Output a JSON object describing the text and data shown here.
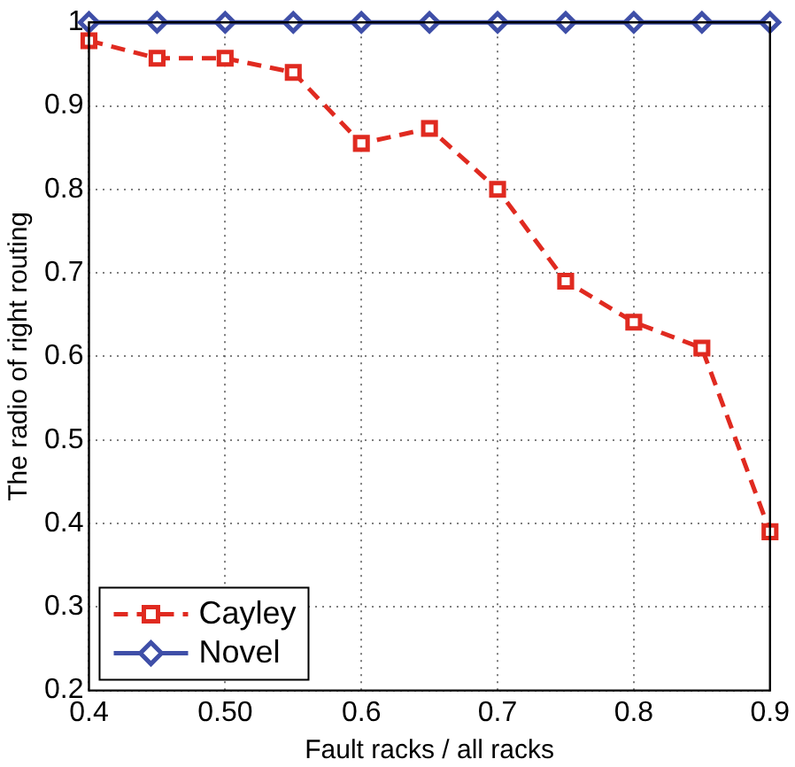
{
  "chart_data": {
    "type": "line",
    "xlabel": "Fault racks / all racks",
    "ylabel": "The radio of right routing",
    "x": [
      0.4,
      0.45,
      0.5,
      0.55,
      0.6,
      0.65,
      0.7,
      0.75,
      0.8,
      0.85,
      0.9
    ],
    "series": [
      {
        "name": "Cayley",
        "color": "#e02a20",
        "values": [
          0.978,
          0.957,
          0.957,
          0.94,
          0.855,
          0.873,
          0.8,
          0.69,
          0.641,
          0.61,
          0.39
        ],
        "marker": "square",
        "line_style": "dashed"
      },
      {
        "name": "Novel",
        "color": "#3f4fa8",
        "values": [
          1,
          1,
          1,
          1,
          1,
          1,
          1,
          1,
          1,
          1,
          1
        ],
        "marker": "diamond",
        "line_style": "solid"
      }
    ],
    "xlim": [
      0.4,
      0.9
    ],
    "xticks": [
      0.4,
      {
        "value": 0.5,
        "label": "0.50"
      },
      0.6,
      0.7,
      0.8,
      0.9
    ],
    "ylim": [
      0.2,
      1
    ],
    "yticks": [
      0.2,
      0.3,
      0.4,
      0.5,
      0.6,
      0.7,
      0.8,
      0.9,
      1
    ],
    "grid": true,
    "legend": "bottom left"
  }
}
